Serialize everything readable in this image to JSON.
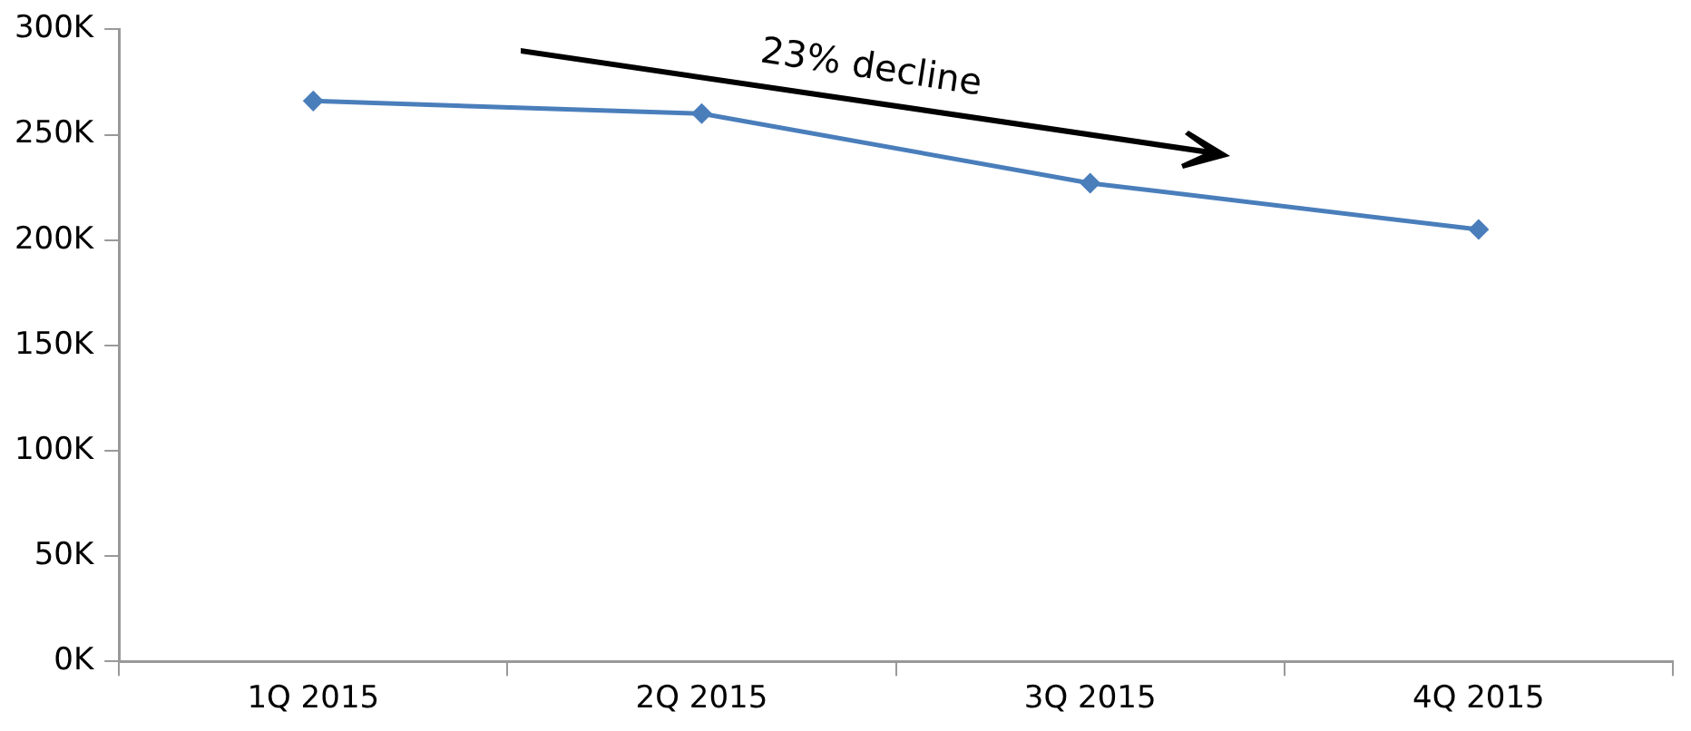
{
  "chart_data": {
    "type": "line",
    "categories": [
      "1Q 2015",
      "2Q 2015",
      "3Q 2015",
      "4Q 2015"
    ],
    "series": [
      {
        "color": "#4a7ebb",
        "values": [
          266000,
          260000,
          227000,
          205000
        ]
      }
    ],
    "ylim": [
      0,
      300000
    ],
    "yticks": [
      {
        "value": 0,
        "label": "0K"
      },
      {
        "value": 50000,
        "label": "50K"
      },
      {
        "value": 100000,
        "label": "100K"
      },
      {
        "value": 150000,
        "label": "150K"
      },
      {
        "value": 200000,
        "label": "200K"
      },
      {
        "value": 250000,
        "label": "250K"
      },
      {
        "value": 300000,
        "label": "300K"
      }
    ],
    "annotations": [
      "23% decline"
    ],
    "marker": "diamond",
    "grid": false,
    "legend": false
  }
}
